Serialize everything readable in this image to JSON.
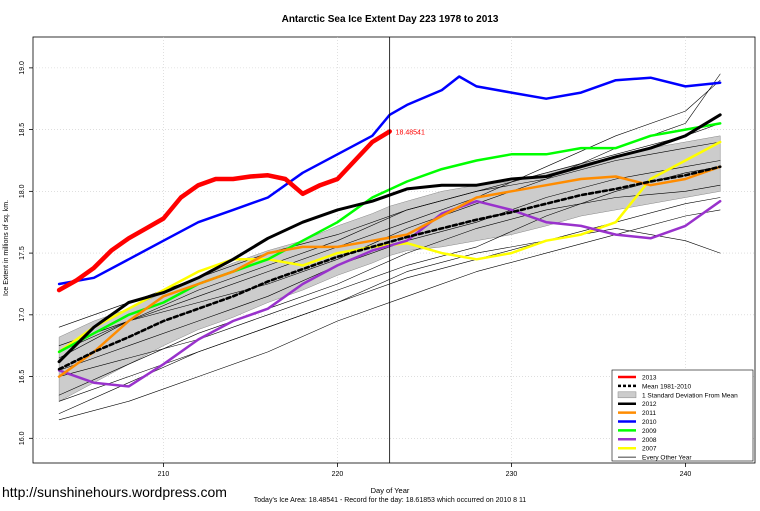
{
  "watermark": "http://sunshinehours.wordpress.com",
  "footer": "Today's Ice Area: 18.48541  - Record for the day: 18.61853 which occurred on 2010 8 11",
  "chart_data": {
    "type": "line",
    "title": "Antarctic Sea Ice Extent Day 223 1978 to 2013",
    "xlabel": "Day of Year",
    "ylabel": "Ice Extent in millions of sq. km.",
    "xlim": [
      202.5,
      244
    ],
    "ylim": [
      15.8,
      19.25
    ],
    "xticks": [
      210,
      220,
      230,
      240
    ],
    "yticks": [
      16.0,
      16.5,
      17.0,
      17.5,
      18.0,
      18.5,
      19.0
    ],
    "grid": true,
    "legend_position": "bottom-right",
    "vline_day": 223,
    "current_value_label": "18.48541",
    "band": {
      "name": "1 Standard Deviation From Mean",
      "color": "#cccccc",
      "x": [
        204,
        206,
        208,
        210,
        212,
        214,
        216,
        218,
        220,
        222,
        223,
        224,
        226,
        228,
        230,
        232,
        234,
        236,
        238,
        240,
        242
      ],
      "upper": [
        16.82,
        16.95,
        17.05,
        17.18,
        17.3,
        17.42,
        17.52,
        17.6,
        17.72,
        17.82,
        17.88,
        17.92,
        18.0,
        18.05,
        18.08,
        18.15,
        18.22,
        18.28,
        18.35,
        18.4,
        18.45
      ],
      "lower": [
        16.3,
        16.45,
        16.6,
        16.75,
        16.88,
        16.98,
        17.1,
        17.2,
        17.32,
        17.42,
        17.48,
        17.52,
        17.55,
        17.6,
        17.65,
        17.72,
        17.8,
        17.85,
        17.9,
        17.95,
        18.0
      ]
    },
    "series": [
      {
        "name": "Every Other Year",
        "color": "#000000",
        "width": 0.6,
        "dash": "",
        "x": [
          204,
          208,
          212,
          216,
          220,
          224,
          228,
          232,
          236,
          240,
          242
        ],
        "y": [
          16.2,
          16.45,
          16.7,
          16.9,
          17.1,
          17.35,
          17.5,
          17.6,
          17.7,
          17.6,
          17.5
        ]
      },
      {
        "name": "",
        "color": "#000000",
        "width": 0.6,
        "dash": "",
        "x": [
          204,
          208,
          212,
          216,
          220,
          224,
          228,
          232,
          236,
          240,
          242
        ],
        "y": [
          16.35,
          16.6,
          16.85,
          17.05,
          17.25,
          17.5,
          17.7,
          17.85,
          17.95,
          18.0,
          18.05
        ]
      },
      {
        "name": "",
        "color": "#000000",
        "width": 0.6,
        "dash": "",
        "x": [
          204,
          208,
          212,
          216,
          220,
          224,
          228,
          232,
          236,
          240,
          242
        ],
        "y": [
          16.55,
          16.75,
          16.95,
          17.15,
          17.4,
          17.6,
          17.75,
          17.95,
          18.1,
          18.2,
          18.25
        ]
      },
      {
        "name": "",
        "color": "#000000",
        "width": 0.6,
        "dash": "",
        "x": [
          204,
          208,
          212,
          216,
          220,
          224,
          228,
          232,
          236,
          240,
          242
        ],
        "y": [
          16.75,
          16.95,
          17.2,
          17.4,
          17.6,
          17.85,
          18.0,
          18.15,
          18.3,
          18.45,
          18.55
        ]
      },
      {
        "name": "",
        "color": "#000000",
        "width": 0.6,
        "dash": "",
        "x": [
          204,
          208,
          212,
          216,
          220,
          224,
          228,
          232,
          236,
          240,
          242
        ],
        "y": [
          16.9,
          17.1,
          17.3,
          17.5,
          17.65,
          17.85,
          18.0,
          18.1,
          18.25,
          18.35,
          18.4
        ]
      },
      {
        "name": "",
        "color": "#000000",
        "width": 0.6,
        "dash": "",
        "x": [
          204,
          208,
          212,
          216,
          220,
          224,
          228,
          232,
          236,
          240,
          242
        ],
        "y": [
          16.15,
          16.3,
          16.5,
          16.7,
          16.95,
          17.15,
          17.35,
          17.5,
          17.65,
          17.8,
          17.85
        ]
      },
      {
        "name": "",
        "color": "#000000",
        "width": 0.6,
        "dash": "",
        "x": [
          204,
          208,
          212,
          216,
          220,
          224,
          228,
          232,
          236,
          240,
          242
        ],
        "y": [
          16.5,
          16.65,
          16.8,
          17.0,
          17.2,
          17.4,
          17.55,
          17.8,
          18.0,
          18.15,
          18.2
        ]
      },
      {
        "name": "",
        "color": "#000000",
        "width": 0.6,
        "dash": "",
        "x": [
          204,
          208,
          212,
          216,
          220,
          224,
          228,
          232,
          236,
          240,
          242
        ],
        "y": [
          16.65,
          16.95,
          17.15,
          17.35,
          17.55,
          17.75,
          17.95,
          18.2,
          18.45,
          18.65,
          18.9
        ]
      },
      {
        "name": "",
        "color": "#000000",
        "width": 0.6,
        "dash": "",
        "x": [
          204,
          208,
          212,
          216,
          220,
          224,
          228,
          232,
          236,
          240,
          242
        ],
        "y": [
          16.3,
          16.5,
          16.7,
          16.9,
          17.1,
          17.3,
          17.45,
          17.6,
          17.75,
          17.9,
          17.95
        ]
      },
      {
        "name": "",
        "color": "#000000",
        "width": 0.6,
        "dash": "",
        "x": [
          204,
          208,
          212,
          216,
          220,
          224,
          228,
          232,
          236,
          240,
          242
        ],
        "y": [
          16.7,
          16.95,
          17.1,
          17.25,
          17.45,
          17.7,
          17.9,
          18.1,
          18.35,
          18.55,
          18.95
        ]
      },
      {
        "name": "2007",
        "color": "#ffff00",
        "width": 2.5,
        "dash": "",
        "x": [
          204,
          206,
          208,
          210,
          212,
          214,
          216,
          218,
          220,
          222,
          224,
          226,
          228,
          230,
          232,
          234,
          236,
          238,
          240,
          242
        ],
        "y": [
          16.7,
          16.9,
          17.05,
          17.2,
          17.35,
          17.45,
          17.45,
          17.4,
          17.5,
          17.55,
          17.58,
          17.5,
          17.45,
          17.5,
          17.6,
          17.65,
          17.75,
          18.1,
          18.25,
          18.4
        ]
      },
      {
        "name": "2008",
        "color": "#9932cc",
        "width": 2.5,
        "dash": "",
        "x": [
          204,
          206,
          208,
          210,
          212,
          214,
          216,
          218,
          220,
          222,
          224,
          226,
          228,
          230,
          232,
          234,
          236,
          238,
          240,
          242
        ],
        "y": [
          16.55,
          16.45,
          16.42,
          16.6,
          16.8,
          16.95,
          17.05,
          17.25,
          17.4,
          17.52,
          17.6,
          17.82,
          17.92,
          17.85,
          17.75,
          17.72,
          17.65,
          17.62,
          17.72,
          17.92
        ]
      },
      {
        "name": "2009",
        "color": "#00ff00",
        "width": 2.5,
        "dash": "",
        "x": [
          204,
          206,
          208,
          210,
          212,
          214,
          216,
          218,
          220,
          222,
          224,
          226,
          228,
          230,
          232,
          234,
          236,
          238,
          240,
          242
        ],
        "y": [
          16.7,
          16.85,
          17.0,
          17.1,
          17.25,
          17.35,
          17.45,
          17.6,
          17.75,
          17.95,
          18.08,
          18.18,
          18.25,
          18.3,
          18.3,
          18.35,
          18.35,
          18.45,
          18.5,
          18.55
        ]
      },
      {
        "name": "2010",
        "color": "#0000ff",
        "width": 2.5,
        "dash": "",
        "x": [
          204,
          206,
          208,
          210,
          212,
          214,
          216,
          218,
          220,
          222,
          223,
          224,
          226,
          227,
          228,
          230,
          232,
          234,
          236,
          238,
          240,
          242
        ],
        "y": [
          17.25,
          17.3,
          17.45,
          17.6,
          17.75,
          17.85,
          17.95,
          18.15,
          18.3,
          18.45,
          18.62,
          18.7,
          18.82,
          18.93,
          18.85,
          18.8,
          18.75,
          18.8,
          18.9,
          18.92,
          18.85,
          18.88
        ]
      },
      {
        "name": "2011",
        "color": "#ff8c00",
        "width": 2.5,
        "dash": "",
        "x": [
          204,
          206,
          208,
          210,
          212,
          214,
          216,
          218,
          220,
          222,
          224,
          226,
          228,
          230,
          232,
          234,
          236,
          238,
          240,
          242
        ],
        "y": [
          16.5,
          16.7,
          16.95,
          17.15,
          17.25,
          17.35,
          17.5,
          17.55,
          17.55,
          17.6,
          17.65,
          17.8,
          17.95,
          18.0,
          18.05,
          18.1,
          18.12,
          18.05,
          18.1,
          18.2
        ]
      },
      {
        "name": "2012",
        "color": "#000000",
        "width": 3,
        "dash": "",
        "x": [
          204,
          206,
          208,
          210,
          212,
          214,
          216,
          218,
          220,
          222,
          224,
          226,
          228,
          230,
          232,
          234,
          236,
          238,
          240,
          242
        ],
        "y": [
          16.62,
          16.9,
          17.1,
          17.18,
          17.3,
          17.45,
          17.62,
          17.75,
          17.85,
          17.92,
          18.02,
          18.05,
          18.05,
          18.1,
          18.12,
          18.2,
          18.28,
          18.35,
          18.45,
          18.62
        ]
      },
      {
        "name": "Mean 1981-2010",
        "color": "#000000",
        "width": 2.6,
        "dash": "4,3",
        "x": [
          204,
          206,
          208,
          210,
          212,
          214,
          216,
          218,
          220,
          222,
          224,
          226,
          228,
          230,
          232,
          234,
          236,
          238,
          240,
          242
        ],
        "y": [
          16.56,
          16.7,
          16.82,
          16.95,
          17.05,
          17.15,
          17.27,
          17.37,
          17.47,
          17.55,
          17.63,
          17.7,
          17.77,
          17.83,
          17.9,
          17.97,
          18.02,
          18.08,
          18.13,
          18.2
        ]
      },
      {
        "name": "2013",
        "color": "#ff0000",
        "width": 4.5,
        "dash": "",
        "x": [
          204,
          205,
          206,
          207,
          208,
          209,
          210,
          211,
          212,
          213,
          214,
          215,
          216,
          217,
          218,
          219,
          220,
          221,
          222,
          223
        ],
        "y": [
          17.2,
          17.28,
          17.38,
          17.52,
          17.62,
          17.7,
          17.78,
          17.95,
          18.05,
          18.1,
          18.1,
          18.12,
          18.13,
          18.1,
          17.98,
          18.05,
          18.1,
          18.25,
          18.4,
          18.48541
        ]
      }
    ],
    "legend": [
      {
        "label": "2013",
        "color": "#ff0000",
        "kind": "line"
      },
      {
        "label": "Mean 1981-2010",
        "color": "#000000",
        "kind": "dash"
      },
      {
        "label": "1 Standard Deviation From Mean",
        "color": "#cccccc",
        "kind": "band"
      },
      {
        "label": "2012",
        "color": "#000000",
        "kind": "line"
      },
      {
        "label": "2011",
        "color": "#ff8c00",
        "kind": "line"
      },
      {
        "label": "2010",
        "color": "#0000ff",
        "kind": "line"
      },
      {
        "label": "2009",
        "color": "#00ff00",
        "kind": "line"
      },
      {
        "label": "2008",
        "color": "#9932cc",
        "kind": "line"
      },
      {
        "label": "2007",
        "color": "#ffff00",
        "kind": "line"
      },
      {
        "label": "Every Other Year",
        "color": "#000000",
        "kind": "thin"
      }
    ]
  }
}
